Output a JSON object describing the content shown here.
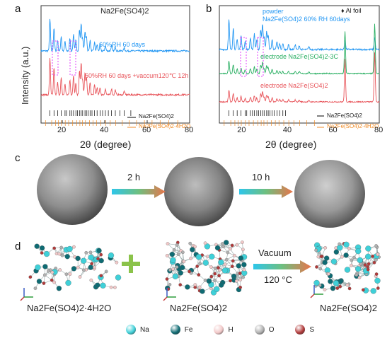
{
  "panels": {
    "a": "a",
    "b": "b",
    "c": "c",
    "d": "d"
  },
  "chart_data": [
    {
      "type": "line",
      "panel": "a",
      "xlabel": "2θ (degree)",
      "ylabel": "Intensity (a.u.)",
      "xlim": [
        10,
        80
      ],
      "xticks": [
        20,
        40,
        60,
        80
      ],
      "legend": "bottom-right",
      "series": [
        {
          "name": "Na2Fe(SO4)2",
          "color": "#000000"
        },
        {
          "name": "60%RH 60 days",
          "color": "#2196f3"
        },
        {
          "name": "60%RH 60 days +vaccum120℃ 12h",
          "color": "#e8545a"
        }
      ],
      "references": [
        {
          "name": "Na2Fe(SO4)2",
          "color": "#000000",
          "peaks": [
            14.2,
            16.1,
            17.8,
            19.5,
            21.3,
            22.0,
            23.6,
            24.5,
            25.3,
            26.4,
            27.2,
            28.1,
            28.9,
            29.6,
            30.7,
            31.4,
            32.2,
            33.1,
            34.0,
            35.2,
            36.4,
            37.8,
            39.0,
            40.3,
            41.7,
            43.2,
            45.0,
            47.1,
            49.2,
            52.3
          ]
        },
        {
          "name": "Na2Fe(SO4)2·4H2O",
          "color": "#f08a24",
          "peaks": [
            12.1,
            15.0,
            16.8,
            18.2,
            19.6,
            21.4,
            23.0,
            24.9,
            26.8,
            28.3,
            29.5,
            30.9,
            32.8,
            34.5,
            36.1,
            38.2,
            40.4,
            42.6,
            45.2,
            48.3,
            51.6,
            55.0,
            58.7,
            62.3,
            66.1,
            70.2,
            74.4
          ]
        }
      ]
    },
    {
      "type": "line",
      "panel": "b",
      "xlabel": "2θ (degree)",
      "xlim": [
        10,
        80
      ],
      "xticks": [
        20,
        40,
        60,
        80
      ],
      "legend": "bottom-right",
      "annotation": "♦ Al foil",
      "series": [
        {
          "name": "powder Na2Fe(SO4)2 60% RH 60days",
          "color": "#2196f3"
        },
        {
          "name": "electrode Na2Fe(SO4)2-3C",
          "color": "#27ae60"
        },
        {
          "name": "electrode Na2Fe(SO4)2",
          "color": "#e8545a"
        }
      ],
      "references": [
        {
          "name": "Na2Fe(SO4)2",
          "color": "#000000",
          "peaks": [
            14.2,
            16.1,
            17.8,
            19.5,
            21.3,
            22.0,
            23.6,
            24.5,
            25.3,
            26.4,
            27.2,
            28.1,
            28.9,
            29.6,
            30.7,
            31.4,
            32.2,
            33.1,
            34.0,
            35.2,
            36.4,
            37.8,
            39.0
          ]
        },
        {
          "name": "Na2Fe(SO4)2·4H2O",
          "color": "#f08a24",
          "peaks": [
            12.1,
            15.0,
            16.8,
            18.2,
            19.6,
            21.4,
            23.0,
            24.9,
            26.8,
            28.3,
            29.5,
            30.9,
            32.8,
            34.5,
            36.1,
            38.2,
            40.4,
            42.6,
            45.2,
            48.3,
            51.6
          ]
        }
      ]
    }
  ],
  "panel_c": {
    "arrow1_label": "2 h",
    "arrow2_label": "10 h"
  },
  "panel_d": {
    "arrow_top": "Vacuum",
    "arrow_bottom": "120 °C",
    "label_left": "Na2Fe(SO4)2·4H2O",
    "label_mid": "Na2Fe(SO4)2",
    "label_right": "Na2Fe(SO4)2",
    "legend": [
      {
        "label": "Na",
        "color": "#3fd0d8"
      },
      {
        "label": "Fe",
        "color": "#0f6b73"
      },
      {
        "label": "H",
        "color": "#f2c9c9"
      },
      {
        "label": "O",
        "color": "#b0b0b0"
      },
      {
        "label": "S",
        "color": "#b13a3a"
      }
    ]
  },
  "a_text": {
    "title": "Na2Fe(SO4)2",
    "blue_label": "60%RH 60 days",
    "red_label": "60%RH 60 days +vaccum120℃  12h"
  },
  "b_text": {
    "al_foil": "♦ Al foil",
    "powder": "powder",
    "blue_label": "Na2Fe(SO4)2  60% RH 60days",
    "green_label": "electrode Na2Fe(SO4)2-3C",
    "red_label": "electrode Na2Fe(SO4)2"
  }
}
